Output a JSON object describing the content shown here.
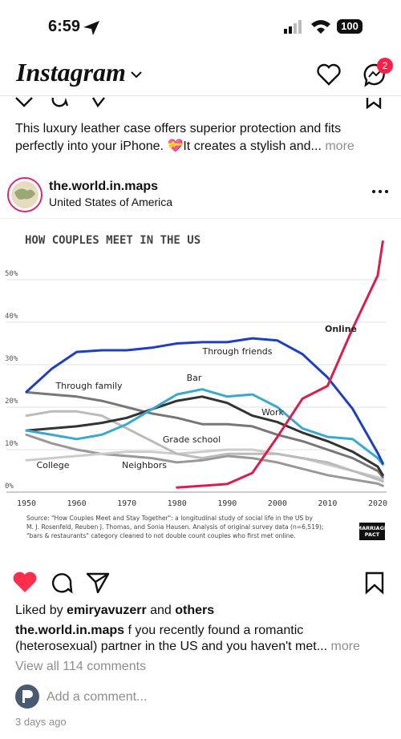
{
  "status_bar": {
    "time": "6:59",
    "battery": "100"
  },
  "header": {
    "logo": "Instagram",
    "badge": "2"
  },
  "previous_post": {
    "caption_lines": [
      "This luxury leather case offers superior protection and fits",
      "perfectly into your iPhone. 💝It creates a stylish and..."
    ],
    "more": "more"
  },
  "post": {
    "username": "the.world.in.maps",
    "location": "United States of America",
    "likes": {
      "prefix": "Liked by",
      "user": "emiryavuzerr",
      "joiner": "and",
      "others": "others"
    },
    "caption": {
      "username": "the.world.in.maps",
      "lines": [
        "f you recently found a romantic",
        "(heterosexual) partner in the US and you haven't met..."
      ],
      "more": "more"
    },
    "view_comments": "View all 114 comments",
    "add_comment": "Add a comment...",
    "time_ago": "3 days ago"
  },
  "chart_data": {
    "type": "line",
    "title": "HOW COUPLES MEET IN THE US",
    "x": [
      1950,
      1955,
      1960,
      1965,
      1970,
      1975,
      1980,
      1985,
      1990,
      1995,
      2000,
      2005,
      2010,
      2015,
      2020,
      2021
    ],
    "xlim": [
      1950,
      2022
    ],
    "xticks": [
      1950,
      1960,
      1970,
      1980,
      1990,
      2000,
      2010,
      2020
    ],
    "ylim": [
      0,
      60
    ],
    "yticks": [
      {
        "value": 0,
        "label": "0%"
      },
      {
        "value": 10,
        "label": "10%"
      },
      {
        "value": 20,
        "label": "20%"
      },
      {
        "value": 30,
        "label": "30%"
      },
      {
        "value": 40,
        "label": "40%"
      },
      {
        "value": 50,
        "label": "50%"
      }
    ],
    "grid": true,
    "series": [
      {
        "name": "Online",
        "color": "#d81e4e",
        "values": [
          null,
          null,
          null,
          null,
          null,
          null,
          1.1,
          1.5,
          1.9,
          4.5,
          13,
          22,
          25,
          38.5,
          51,
          59
        ]
      },
      {
        "name": "Through friends",
        "color": "#1f3fbf",
        "values": [
          23.6,
          29,
          33,
          33.4,
          33.4,
          34,
          35,
          35.3,
          35.3,
          36.2,
          35.7,
          32.5,
          27,
          19.6,
          9.2,
          6.8
        ]
      },
      {
        "name": "Bar",
        "color": "#3aa8d0",
        "values": [
          14.5,
          13.5,
          12.5,
          13.5,
          16,
          19.5,
          23,
          24.2,
          22.5,
          23,
          20,
          15,
          13,
          12.5,
          8,
          6.5
        ]
      },
      {
        "name": "Work",
        "color": "#333333",
        "values": [
          14.5,
          15,
          15.5,
          16.3,
          17.5,
          19.5,
          21.5,
          22.5,
          21,
          18,
          16.5,
          14,
          12,
          9.5,
          6,
          4
        ]
      },
      {
        "name": "Through family",
        "color": "#777777",
        "values": [
          23.5,
          23,
          22.5,
          21.5,
          20,
          18.5,
          17.5,
          16,
          16,
          15.5,
          13.5,
          12,
          10,
          8,
          5,
          3.5
        ]
      },
      {
        "name": "Grade school",
        "color": "#bbbbbb",
        "values": [
          18,
          19,
          19,
          18,
          15,
          12,
          9,
          8,
          9,
          9,
          9,
          8,
          7,
          5,
          3,
          2.5
        ]
      },
      {
        "name": "College",
        "color": "#cccccc",
        "values": [
          7.5,
          8,
          8.5,
          9,
          9.5,
          9.5,
          9,
          9.5,
          10,
          10,
          9,
          8,
          6.5,
          5,
          3.5,
          3
        ]
      },
      {
        "name": "Neighbors",
        "color": "#999999",
        "values": [
          13.5,
          11.5,
          10,
          9,
          8.5,
          8,
          7,
          7.5,
          8.5,
          8,
          7,
          5.5,
          4,
          3,
          2,
          1.5
        ]
      }
    ],
    "source_lines": [
      "Source: \"How Couples Meet and Stay Together\": a longitudinal study of social life in the US by",
      "M. J. Rosenfeld, Reuben J. Thomas, and Sonia Hausen. Analysis of original survey data (n=6,519);",
      "\"bars & restaurants\" category cleaned to not double count couples who first met online."
    ],
    "logo_lines": [
      "MARRIAGE",
      "PACT"
    ]
  }
}
